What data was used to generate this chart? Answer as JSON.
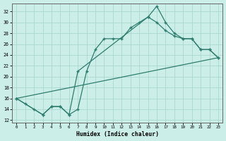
{
  "xlabel": "Humidex (Indice chaleur)",
  "bg_color": "#cceee8",
  "line_color": "#2e7d6e",
  "grid_color": "#aad8d0",
  "xlim": [
    -0.5,
    23.5
  ],
  "ylim": [
    11.5,
    33.5
  ],
  "yticks": [
    12,
    14,
    16,
    18,
    20,
    22,
    24,
    26,
    28,
    30,
    32
  ],
  "xticks": [
    0,
    1,
    2,
    3,
    4,
    5,
    6,
    7,
    8,
    9,
    10,
    11,
    12,
    13,
    14,
    15,
    16,
    17,
    18,
    19,
    20,
    21,
    22,
    23
  ],
  "line1_x": [
    0,
    1,
    2,
    3,
    4,
    5,
    6,
    7,
    8,
    9,
    10,
    11,
    12,
    13,
    14,
    15,
    16,
    17,
    18,
    19,
    20,
    21,
    22,
    23
  ],
  "line1_y": [
    16,
    15,
    14,
    13,
    14.5,
    14.5,
    13,
    14,
    21,
    25,
    27,
    27,
    27,
    29,
    30,
    31,
    33,
    30,
    28,
    27,
    27,
    25,
    25,
    23.5
  ],
  "line2_x": [
    0,
    3,
    4,
    5,
    6,
    7,
    15,
    16,
    17,
    18,
    19,
    20,
    21,
    22,
    23
  ],
  "line2_y": [
    16,
    13,
    14.5,
    14.5,
    13,
    21,
    31,
    30,
    28.5,
    27.5,
    27,
    27,
    25,
    25,
    23.5
  ],
  "line3_x": [
    0,
    23
  ],
  "line3_y": [
    16,
    23.5
  ]
}
